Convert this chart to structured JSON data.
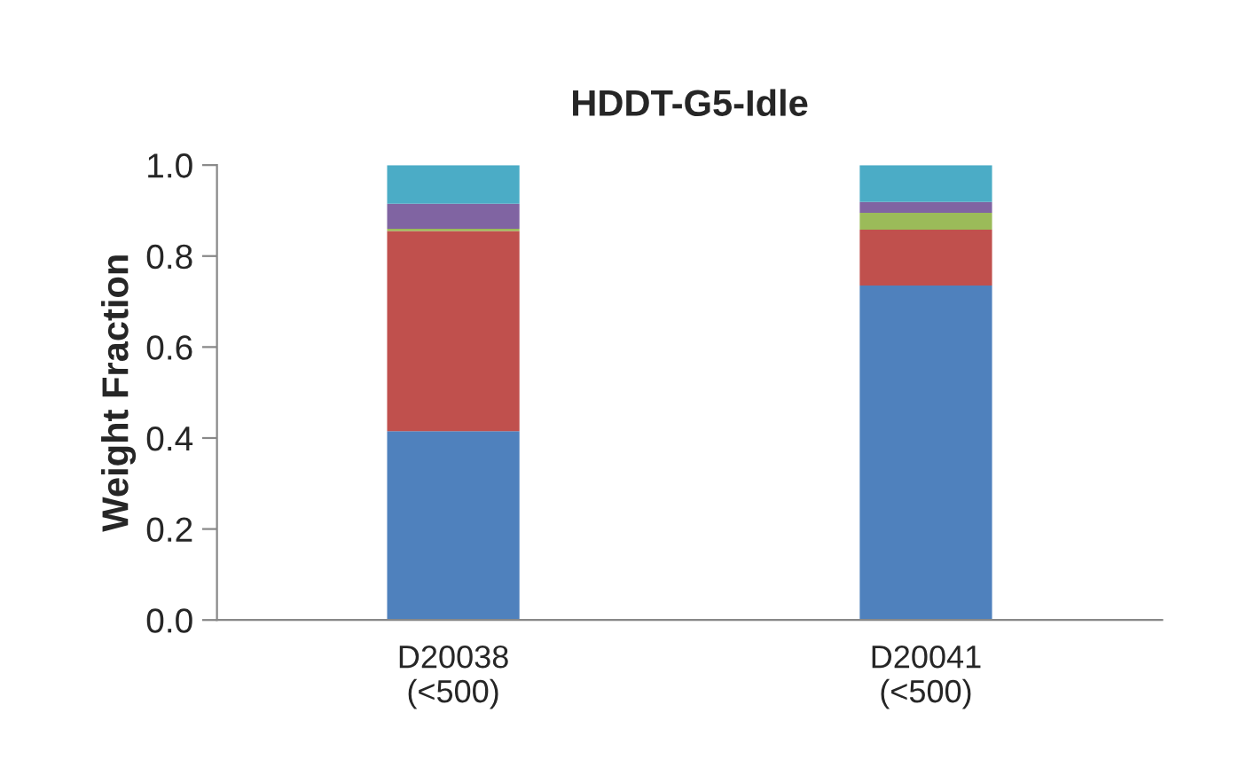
{
  "chart_data": {
    "type": "bar",
    "title": "HDDT-G5-Idle",
    "ylabel": "Weight Fraction",
    "categories": [
      "D20038\n(<500)",
      "D20041\n(<500)"
    ],
    "stacked": true,
    "series": [
      {
        "color": "#4f81bd",
        "values": [
          0.415,
          0.735
        ]
      },
      {
        "color": "#c0504d",
        "values": [
          0.44,
          0.123
        ]
      },
      {
        "color": "#9bbb59",
        "values": [
          0.005,
          0.037
        ]
      },
      {
        "color": "#8064a2",
        "values": [
          0.055,
          0.024
        ]
      },
      {
        "color": "#4bacc6",
        "values": [
          0.085,
          0.081
        ]
      }
    ],
    "ylim": [
      0,
      1.0
    ],
    "yticks": [
      {
        "value": 0,
        "label": "0.0"
      },
      {
        "value": 0.2,
        "label": "0.2"
      },
      {
        "value": 0.4,
        "label": "0.4"
      },
      {
        "value": 0.6,
        "label": "0.6"
      },
      {
        "value": 0.8,
        "label": "0.8"
      },
      {
        "value": 1.0,
        "label": "1.0"
      }
    ],
    "grid": false
  }
}
